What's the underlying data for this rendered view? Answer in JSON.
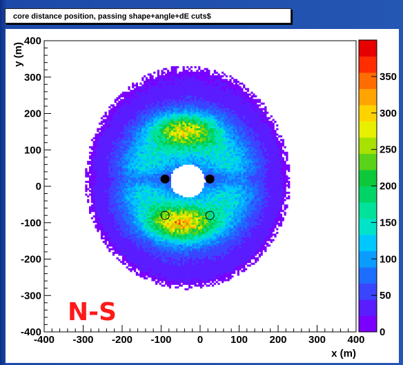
{
  "chart_data": {
    "type": "heatmap",
    "title": "core distance position, passing shape+angle+dE cuts$",
    "xlabel": "x (m)",
    "ylabel": "y (m)",
    "xlim": [
      -400,
      400
    ],
    "ylim": [
      -400,
      400
    ],
    "x_ticks": [
      "-400",
      "-300",
      "-200",
      "-100",
      "0",
      "100",
      "200",
      "300",
      "400"
    ],
    "y_ticks": [
      "-400",
      "-300",
      "-200",
      "-100",
      "0",
      "100",
      "200",
      "300",
      "400"
    ],
    "colorbar": {
      "range": [
        0,
        400
      ],
      "ticks": [
        "0",
        "50",
        "100",
        "150",
        "200",
        "250",
        "300",
        "350"
      ],
      "colors": [
        "#7a00ff",
        "#5a1dff",
        "#3a45ff",
        "#1d6eff",
        "#0a9dff",
        "#00c8ff",
        "#00e3c8",
        "#00e29a",
        "#00d467",
        "#0cc83a",
        "#5ad21a",
        "#a8e000",
        "#e6f000",
        "#ffd300",
        "#ffa400",
        "#ff6d00",
        "#ff2d00",
        "#e60000"
      ]
    },
    "markers": [
      {
        "type": "filled",
        "x": -90,
        "y": 20
      },
      {
        "type": "filled",
        "x": 25,
        "y": 20
      },
      {
        "type": "open",
        "x": -90,
        "y": -80
      },
      {
        "type": "open",
        "x": 25,
        "y": -80
      }
    ],
    "annotation": "N-S",
    "distribution": {
      "center": [
        -32,
        15
      ],
      "peak_regions": [
        {
          "x": -40,
          "y": 155,
          "max_count": 300
        },
        {
          "x": -50,
          "y": -100,
          "max_count": 320
        }
      ],
      "hole_radius": 45,
      "outer_extent_x": [
        -270,
        270
      ],
      "outer_extent_y": [
        -285,
        335
      ]
    }
  },
  "colors": {
    "background": "#2456b4",
    "frame": "#ffffff",
    "annotation": "#ff1a1a"
  }
}
